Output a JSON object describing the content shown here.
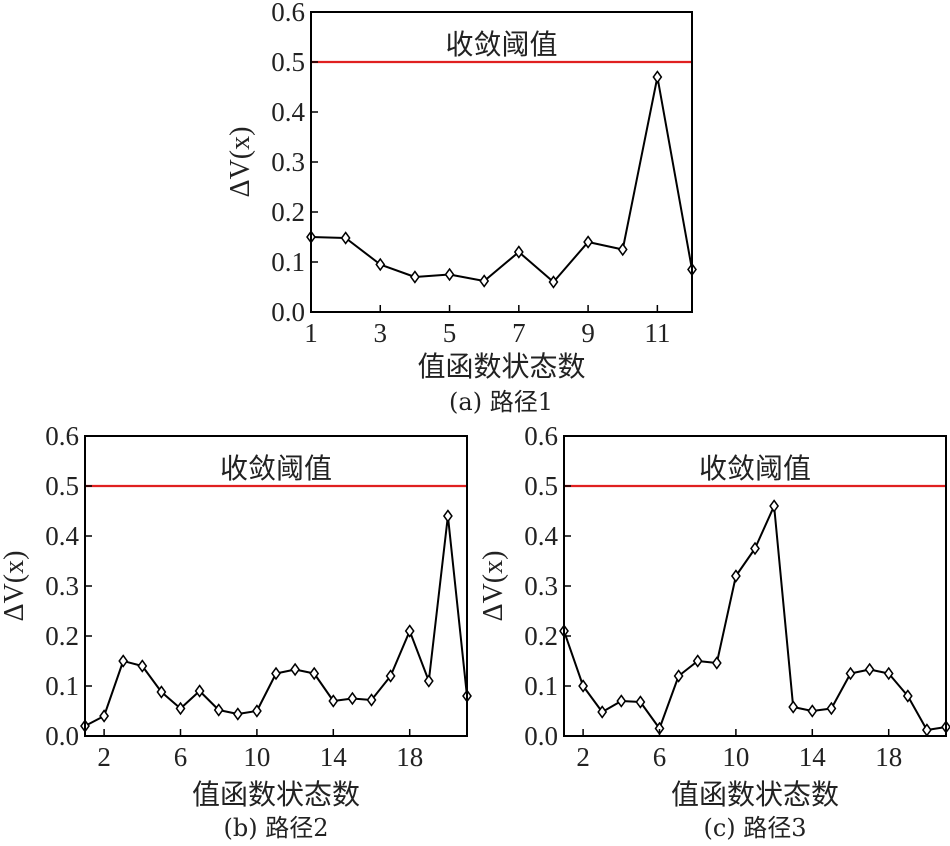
{
  "chart_data": [
    {
      "type": "line",
      "caption": "(a) 路径1",
      "xlabel": "值函数状态数",
      "ylabel": "ΔV(x)",
      "xlim": [
        1,
        12
      ],
      "ylim": [
        0.0,
        0.6
      ],
      "xticks": [
        1,
        3,
        5,
        7,
        9,
        11
      ],
      "yticks": [
        "0.0",
        "0.1",
        "0.2",
        "0.3",
        "0.4",
        "0.5",
        "0.6"
      ],
      "x": [
        1,
        2,
        3,
        4,
        5,
        6,
        7,
        8,
        9,
        10,
        11,
        12
      ],
      "values": [
        0.15,
        0.148,
        0.095,
        0.07,
        0.075,
        0.062,
        0.12,
        0.06,
        0.14,
        0.125,
        0.47,
        0.085
      ],
      "threshold": {
        "value": 0.5,
        "label": "收敛阈值",
        "color": "#e02020"
      },
      "line_color": "#000000",
      "marker": "diamond",
      "grid": false
    },
    {
      "type": "line",
      "caption": "(b) 路径2",
      "xlabel": "值函数状态数",
      "ylabel": "ΔV(x)",
      "xlim": [
        1,
        21
      ],
      "ylim": [
        0.0,
        0.6
      ],
      "xticks": [
        2,
        6,
        10,
        14,
        18
      ],
      "yticks": [
        "0.0",
        "0.1",
        "0.2",
        "0.3",
        "0.4",
        "0.5",
        "0.6"
      ],
      "x": [
        1,
        2,
        3,
        4,
        5,
        6,
        7,
        8,
        9,
        10,
        11,
        12,
        13,
        14,
        15,
        16,
        17,
        18,
        19,
        20,
        21
      ],
      "values": [
        0.02,
        0.04,
        0.15,
        0.14,
        0.088,
        0.055,
        0.09,
        0.052,
        0.044,
        0.05,
        0.125,
        0.133,
        0.125,
        0.07,
        0.075,
        0.072,
        0.12,
        0.21,
        0.11,
        0.44,
        0.08
      ],
      "threshold": {
        "value": 0.5,
        "label": "收敛阈值",
        "color": "#e02020"
      },
      "line_color": "#000000",
      "marker": "diamond",
      "grid": false
    },
    {
      "type": "line",
      "caption": "(c) 路径3",
      "xlabel": "值函数状态数",
      "ylabel": "ΔV(x)",
      "xlim": [
        1,
        21
      ],
      "ylim": [
        0.0,
        0.6
      ],
      "xticks": [
        2,
        6,
        10,
        14,
        18
      ],
      "yticks": [
        "0.0",
        "0.1",
        "0.2",
        "0.3",
        "0.4",
        "0.5",
        "0.6"
      ],
      "x": [
        1,
        2,
        3,
        4,
        5,
        6,
        7,
        8,
        9,
        10,
        11,
        12,
        13,
        14,
        15,
        16,
        17,
        18,
        19,
        20,
        21
      ],
      "values": [
        0.21,
        0.1,
        0.048,
        0.07,
        0.068,
        0.015,
        0.12,
        0.15,
        0.146,
        0.32,
        0.375,
        0.46,
        0.058,
        0.05,
        0.055,
        0.125,
        0.133,
        0.125,
        0.08,
        0.012,
        0.018
      ],
      "threshold": {
        "value": 0.5,
        "label": "收敛阈值",
        "color": "#e02020"
      },
      "line_color": "#000000",
      "marker": "diamond",
      "grid": false
    }
  ]
}
